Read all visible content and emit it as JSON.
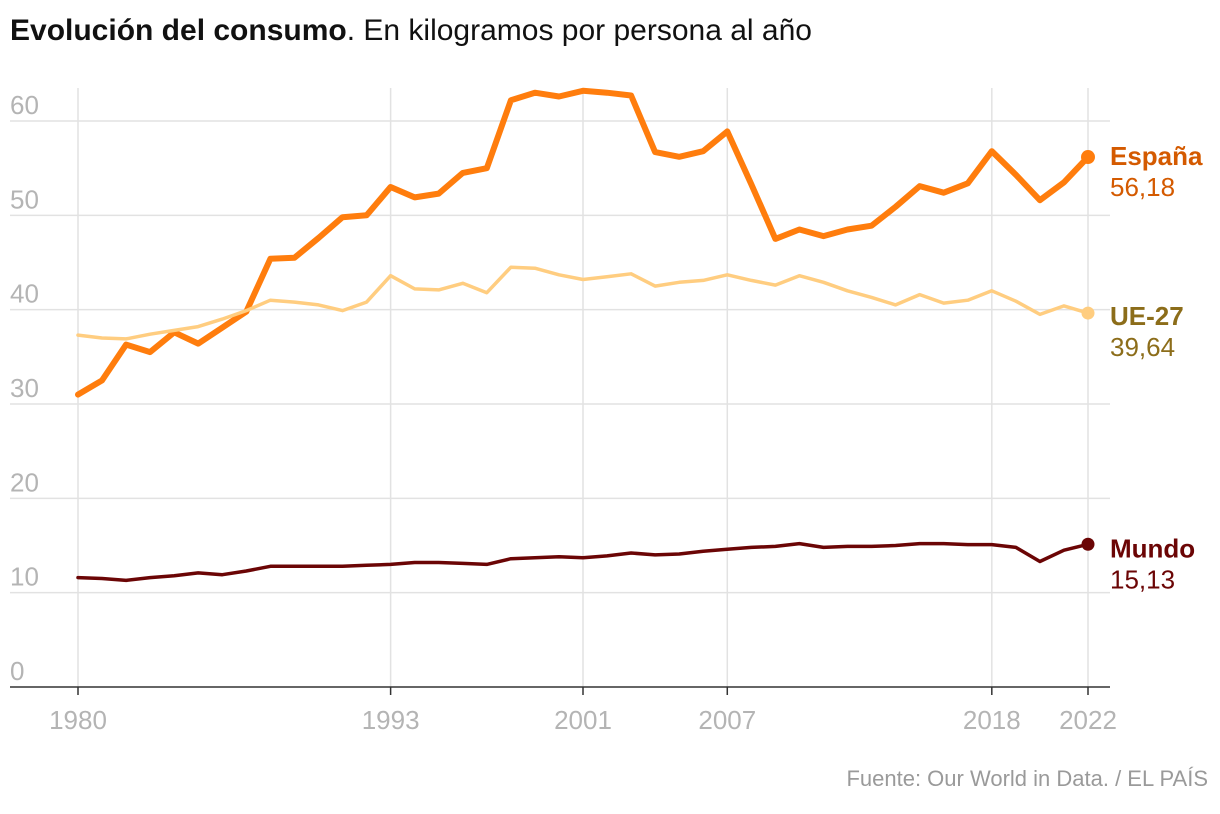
{
  "header": {
    "title_bold": "Evolución del consumo",
    "title_rest": ". En kilogramos por persona al año"
  },
  "source": "Fuente: Our World in Data. / EL PAÍS",
  "colors": {
    "espana": "#ff7d0d",
    "espana_label": "#d45a00",
    "ue": "#ffcd80",
    "ue_label": "#8c6d1a",
    "mundo": "#6b0505",
    "mundo_label": "#6b0505",
    "grid": "#e2e2e2",
    "axis": "#333333"
  },
  "chart_data": {
    "type": "line",
    "title": "Evolución del consumo. En kilogramos por persona al año",
    "xlabel": "",
    "ylabel": "",
    "xlim": [
      1980,
      2022
    ],
    "ylim": [
      0,
      60
    ],
    "x_ticks": [
      "1980",
      "1993",
      "2001",
      "2007",
      "2018",
      "2022"
    ],
    "y_ticks": [
      "0",
      "10",
      "20",
      "30",
      "40",
      "50",
      "60"
    ],
    "grid": true,
    "x": [
      1980,
      1981,
      1982,
      1983,
      1984,
      1985,
      1986,
      1987,
      1988,
      1989,
      1990,
      1991,
      1992,
      1993,
      1994,
      1995,
      1996,
      1997,
      1998,
      1999,
      2000,
      2001,
      2002,
      2003,
      2004,
      2005,
      2006,
      2007,
      2008,
      2009,
      2010,
      2011,
      2012,
      2013,
      2014,
      2015,
      2016,
      2017,
      2018,
      2019,
      2020,
      2021,
      2022
    ],
    "series": [
      {
        "key": "espana",
        "name": "España",
        "label_value": "56,18",
        "values": [
          31.0,
          32.5,
          36.3,
          35.5,
          37.6,
          36.4,
          38.1,
          39.8,
          45.4,
          45.5,
          47.6,
          49.8,
          50.0,
          53.0,
          51.9,
          52.3,
          54.5,
          55.0,
          62.2,
          63.0,
          62.6,
          63.2,
          63.0,
          62.7,
          56.7,
          56.2,
          56.8,
          58.9,
          53.3,
          47.5,
          48.5,
          47.8,
          48.5,
          48.9,
          50.9,
          53.1,
          52.4,
          53.4,
          56.8,
          54.3,
          51.6,
          53.5,
          56.18
        ]
      },
      {
        "key": "ue",
        "name": "UE-27",
        "label_value": "39,64",
        "values": [
          37.3,
          37.0,
          36.9,
          37.4,
          37.8,
          38.2,
          39.0,
          39.9,
          41.0,
          40.8,
          40.5,
          39.9,
          40.8,
          43.6,
          42.2,
          42.1,
          42.8,
          41.8,
          44.5,
          44.4,
          43.7,
          43.2,
          43.5,
          43.8,
          42.5,
          42.9,
          43.1,
          43.7,
          43.1,
          42.6,
          43.6,
          42.9,
          42.0,
          41.3,
          40.5,
          41.6,
          40.7,
          41.0,
          42.0,
          40.9,
          39.5,
          40.4,
          39.64
        ]
      },
      {
        "key": "mundo",
        "name": "Mundo",
        "label_value": "15,13",
        "values": [
          11.6,
          11.5,
          11.3,
          11.6,
          11.8,
          12.1,
          11.9,
          12.3,
          12.8,
          12.8,
          12.8,
          12.8,
          12.9,
          13.0,
          13.2,
          13.2,
          13.1,
          13.0,
          13.6,
          13.7,
          13.8,
          13.7,
          13.9,
          14.2,
          14.0,
          14.1,
          14.4,
          14.6,
          14.8,
          14.9,
          15.2,
          14.8,
          14.9,
          14.9,
          15.0,
          15.2,
          15.2,
          15.1,
          15.1,
          14.8,
          13.3,
          14.5,
          15.13
        ]
      }
    ]
  }
}
